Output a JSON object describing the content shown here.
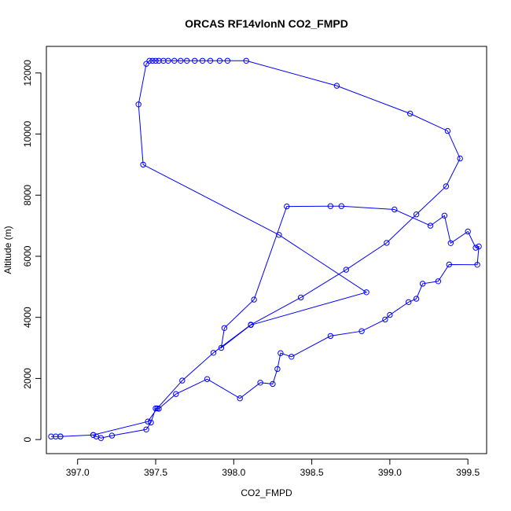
{
  "chart_data": {
    "type": "line",
    "title": "ORCAS RF14vlonN CO2_FMPD",
    "xlabel": "CO2_FMPD",
    "ylabel": "Altitude (m)",
    "xlim": [
      396.8,
      399.62
    ],
    "ylim": [
      -460,
      12870
    ],
    "xticks": [
      397.0,
      397.5,
      398.0,
      398.5,
      399.0,
      399.5
    ],
    "xtick_labels": [
      "397.0",
      "397.5",
      "398.0",
      "398.5",
      "399.0",
      "399.5"
    ],
    "yticks": [
      0,
      2000,
      4000,
      6000,
      8000,
      10000,
      12000
    ],
    "ytick_labels": [
      "0",
      "2000",
      "4000",
      "6000",
      "8000",
      "10000",
      "12000"
    ],
    "grid": false,
    "markers": "open-circle",
    "color": "#0000ff",
    "series": [
      {
        "x": [
          396.83,
          396.86,
          396.89,
          397.1,
          397.12,
          397.15,
          397.22,
          397.44,
          397.47,
          397.5,
          397.52,
          397.63,
          397.83,
          398.04,
          398.17,
          398.25,
          398.28,
          398.3,
          398.37,
          398.62,
          398.82,
          398.97,
          399.0,
          399.12,
          399.17,
          399.21,
          399.31,
          399.38,
          399.56,
          399.57,
          399.55,
          399.5,
          399.39,
          399.35,
          399.26,
          399.03,
          398.69,
          398.62,
          398.34,
          398.13,
          397.94,
          397.92,
          398.11,
          398.85,
          398.29,
          397.42,
          397.39,
          397.44,
          397.46,
          397.48,
          397.5,
          397.52,
          397.55,
          397.58,
          397.62,
          397.66,
          397.7,
          397.75,
          397.8,
          397.85,
          397.91,
          397.96,
          398.08,
          398.66,
          399.13,
          399.37,
          399.45,
          399.36,
          399.17,
          398.98,
          398.72,
          398.43,
          398.11,
          397.87,
          397.67,
          397.51,
          397.45,
          397.1,
          396.89
        ],
        "y": [
          100,
          100,
          100,
          150,
          100,
          50,
          130,
          330,
          560,
          1020,
          1010,
          1490,
          1980,
          1350,
          1860,
          1820,
          2310,
          2830,
          2710,
          3390,
          3550,
          3930,
          4080,
          4500,
          4610,
          5100,
          5180,
          5730,
          5720,
          6320,
          6280,
          6810,
          6430,
          7330,
          7000,
          7530,
          7640,
          7640,
          7630,
          4580,
          3650,
          3000,
          3750,
          4820,
          6700,
          9000,
          10970,
          12300,
          12400,
          12400,
          12400,
          12400,
          12400,
          12400,
          12400,
          12400,
          12400,
          12400,
          12400,
          12400,
          12400,
          12400,
          12400,
          11580,
          10670,
          10100,
          9200,
          8290,
          7370,
          6440,
          5560,
          4650,
          3760,
          2840,
          1930,
          1020,
          590,
          150,
          100
        ]
      }
    ]
  }
}
